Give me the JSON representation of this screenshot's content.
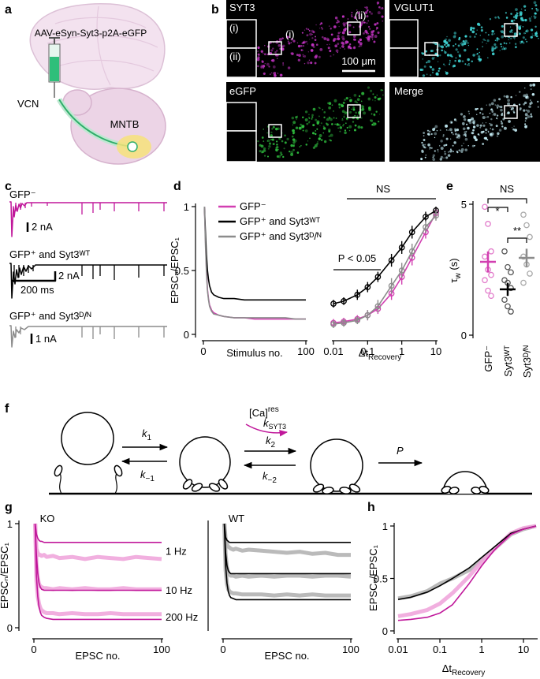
{
  "panel_labels": [
    "a",
    "b",
    "c",
    "d",
    "e",
    "f",
    "g",
    "h"
  ],
  "panel_a": {
    "construct": "AAV-eSyn-Syt3-p2A-eGFP",
    "labels": [
      "VCN",
      "MNTB"
    ]
  },
  "panel_b": {
    "channels": [
      "SYT3",
      "VGLUT1",
      "eGFP",
      "Merge"
    ],
    "insets": [
      "(i)",
      "(ii)"
    ],
    "regions": [
      "(i)",
      "(ii)"
    ],
    "scale_bar": "100 μm"
  },
  "panel_c": {
    "traces": [
      {
        "label": "GFP⁻",
        "scale": "2 nA"
      },
      {
        "label": "GFP⁺ and Syt3ᵂᵀ",
        "scale": "2 nA",
        "time_scale": "200 ms"
      },
      {
        "label": "GFP⁺ and Syt3ᴰ/ᴺ",
        "scale": "1 nA"
      }
    ]
  },
  "panel_f": {
    "rates": [
      {
        "symbol": "k",
        "sub": "1"
      },
      {
        "symbol": "k",
        "sub": "−1"
      },
      {
        "symbol": "k",
        "sub": "2"
      },
      {
        "symbol": "k",
        "sub": "−2"
      }
    ],
    "calcium": {
      "main": "[Ca]",
      "sup": "res"
    },
    "syt3_rate": {
      "symbol": "k",
      "sub": "SYT3"
    },
    "release": "P"
  },
  "chart_data": [
    {
      "type": "line",
      "xlabel": "Stimulus no.",
      "ylabel": "EPSCₙ/EPSC₁",
      "x": [
        1,
        2,
        3,
        4,
        5,
        6,
        8,
        10,
        15,
        20,
        30,
        40,
        50,
        60,
        70,
        80,
        90,
        100
      ],
      "xlim": [
        0,
        100
      ],
      "xticks": [
        0,
        100
      ],
      "ylim": [
        0,
        1
      ],
      "yticks": [
        0,
        0.5,
        1
      ],
      "legend": "upper right",
      "series": [
        {
          "name": "GFP⁻",
          "color": "#d23fb1",
          "values": [
            1,
            0.75,
            0.5,
            0.35,
            0.28,
            0.23,
            0.19,
            0.17,
            0.15,
            0.14,
            0.13,
            0.13,
            0.12,
            0.12,
            0.12,
            0.12,
            0.12,
            0.12
          ]
        },
        {
          "name": "GFP⁺ and Syt3ᵂᵀ",
          "color": "#000000",
          "values": [
            1,
            0.8,
            0.62,
            0.5,
            0.43,
            0.38,
            0.33,
            0.31,
            0.29,
            0.28,
            0.28,
            0.27,
            0.27,
            0.27,
            0.27,
            0.27,
            0.27,
            0.27
          ]
        },
        {
          "name": "GFP⁺ and Syt3ᴰ/ᴺ",
          "color": "#8c8c8c",
          "values": [
            1,
            0.7,
            0.48,
            0.34,
            0.27,
            0.22,
            0.18,
            0.16,
            0.15,
            0.14,
            0.13,
            0.13,
            0.13,
            0.13,
            0.13,
            0.13,
            0.12,
            0.12
          ]
        }
      ]
    },
    {
      "type": "line",
      "markers": true,
      "xlabel": "Δt",
      "xlabel_sub": "Recovery",
      "log_x": true,
      "x": [
        0.01,
        0.02,
        0.05,
        0.1,
        0.2,
        0.5,
        1,
        2,
        5,
        10
      ],
      "xlim": [
        0.01,
        10
      ],
      "xticks": [
        0.01,
        0.1,
        1,
        10
      ],
      "ylim": [
        0,
        1
      ],
      "annotations": [
        "NS",
        "P < 0.05"
      ],
      "series": [
        {
          "color": "#d23fb1",
          "values": [
            0.09,
            0.1,
            0.12,
            0.15,
            0.2,
            0.32,
            0.45,
            0.6,
            0.8,
            0.95
          ],
          "errors": [
            0.03,
            0.03,
            0.03,
            0.04,
            0.04,
            0.05,
            0.06,
            0.06,
            0.05,
            0.04
          ]
        },
        {
          "color": "#000000",
          "values": [
            0.24,
            0.26,
            0.31,
            0.37,
            0.45,
            0.58,
            0.68,
            0.8,
            0.92,
            0.97
          ],
          "errors": [
            0.03,
            0.03,
            0.04,
            0.04,
            0.04,
            0.05,
            0.05,
            0.05,
            0.04,
            0.03
          ]
        },
        {
          "color": "#8c8c8c",
          "values": [
            0.08,
            0.09,
            0.11,
            0.15,
            0.22,
            0.38,
            0.5,
            0.65,
            0.84,
            0.93
          ],
          "errors": [
            0.03,
            0.03,
            0.03,
            0.04,
            0.05,
            0.06,
            0.06,
            0.06,
            0.05,
            0.04
          ]
        }
      ]
    },
    {
      "type": "strip",
      "categories": [
        "GFP⁻",
        "Syt3ᵂᵀ",
        "Syt3ᴰ/ᴺ"
      ],
      "ylabel": "τ",
      "ylabel_sub": "w",
      "ylabel_unit": " (s)",
      "ylim": [
        0,
        5
      ],
      "yticks": [
        0,
        5
      ],
      "colors": [
        "#d23fb1",
        "#000000",
        "#8c8c8c"
      ],
      "point_colors": [
        "#e27ccb",
        "#555555",
        "#aaaaaa"
      ],
      "points": [
        [
          4.9,
          4.25,
          3.2,
          3.0,
          2.5,
          2.3,
          2.1,
          1.7,
          1.5
        ],
        [
          3.2,
          2.6,
          2.4,
          2.1,
          2.0,
          1.8,
          1.35,
          1.1,
          0.9
        ],
        [
          4.6,
          4.2,
          3.75,
          3.0,
          2.7,
          2.35,
          2.0
        ]
      ],
      "means": [
        2.8,
        1.75,
        2.95
      ],
      "errors": [
        0.4,
        0.25,
        0.35
      ],
      "annotations": [
        "NS",
        "*",
        "**"
      ]
    },
    {
      "type": "line",
      "title": "KO",
      "xlabel": "EPSC no.",
      "ylabel": "EPSCₙ/EPSC₁",
      "x": [
        1,
        2,
        3,
        4,
        5,
        6,
        8,
        10,
        15,
        20,
        30,
        40,
        50,
        60,
        70,
        80,
        90,
        100
      ],
      "xlim": [
        0,
        100
      ],
      "xticks": [
        0,
        100
      ],
      "ylim": [
        0,
        1
      ],
      "yticks": [
        0,
        1
      ],
      "series": [
        {
          "name": "1 Hz",
          "band": true,
          "color": "#f0a6dc",
          "values": [
            1,
            0.76,
            0.72,
            0.7,
            0.7,
            0.69,
            0.7,
            0.68,
            0.69,
            0.67,
            0.68,
            0.66,
            0.68,
            0.67,
            0.66,
            0.68,
            0.67,
            0.66
          ]
        },
        {
          "name": "10 Hz",
          "band": true,
          "color": "#f0a6dc",
          "values": [
            1,
            0.62,
            0.48,
            0.42,
            0.4,
            0.39,
            0.38,
            0.38,
            0.37,
            0.38,
            0.37,
            0.38,
            0.37,
            0.37,
            0.38,
            0.37,
            0.37,
            0.37
          ]
        },
        {
          "name": "200 Hz",
          "band": true,
          "color": "#f0a6dc",
          "values": [
            1,
            0.45,
            0.3,
            0.23,
            0.19,
            0.17,
            0.15,
            0.14,
            0.14,
            0.13,
            0.14,
            0.13,
            0.13,
            0.14,
            0.13,
            0.13,
            0.13,
            0.13
          ]
        },
        {
          "color": "#c0179a",
          "values": [
            1,
            0.9,
            0.86,
            0.84,
            0.83,
            0.83,
            0.82,
            0.82,
            0.82,
            0.82,
            0.82,
            0.82,
            0.82,
            0.82,
            0.82,
            0.82,
            0.82,
            0.82
          ]
        },
        {
          "color": "#c0179a",
          "values": [
            1,
            0.7,
            0.52,
            0.43,
            0.39,
            0.37,
            0.36,
            0.36,
            0.36,
            0.36,
            0.36,
            0.36,
            0.36,
            0.36,
            0.36,
            0.36,
            0.36,
            0.36
          ]
        },
        {
          "color": "#c0179a",
          "values": [
            1,
            0.5,
            0.3,
            0.2,
            0.15,
            0.12,
            0.1,
            0.09,
            0.08,
            0.08,
            0.08,
            0.08,
            0.08,
            0.08,
            0.08,
            0.08,
            0.08,
            0.08
          ]
        }
      ]
    },
    {
      "type": "line",
      "title": "WT",
      "xlabel": "EPSC no.",
      "x": [
        1,
        2,
        3,
        4,
        5,
        6,
        8,
        10,
        15,
        20,
        30,
        40,
        50,
        60,
        70,
        80,
        90,
        100
      ],
      "xlim": [
        0,
        100
      ],
      "xticks": [
        0,
        100
      ],
      "ylim": [
        0,
        1
      ],
      "series": [
        {
          "band": true,
          "color": "#b3b3b3",
          "values": [
            1,
            0.85,
            0.8,
            0.78,
            0.77,
            0.76,
            0.75,
            0.76,
            0.74,
            0.75,
            0.74,
            0.73,
            0.72,
            0.73,
            0.71,
            0.72,
            0.7,
            0.7
          ]
        },
        {
          "band": true,
          "color": "#b3b3b3",
          "values": [
            1,
            0.7,
            0.58,
            0.53,
            0.51,
            0.5,
            0.5,
            0.49,
            0.5,
            0.49,
            0.5,
            0.49,
            0.5,
            0.5,
            0.49,
            0.5,
            0.5,
            0.49
          ]
        },
        {
          "band": true,
          "color": "#b3b3b3",
          "values": [
            1,
            0.55,
            0.42,
            0.37,
            0.35,
            0.34,
            0.33,
            0.33,
            0.32,
            0.32,
            0.32,
            0.31,
            0.32,
            0.31,
            0.32,
            0.31,
            0.31,
            0.31
          ]
        },
        {
          "color": "#000000",
          "values": [
            1,
            0.87,
            0.84,
            0.83,
            0.82,
            0.82,
            0.82,
            0.82,
            0.82,
            0.82,
            0.82,
            0.82,
            0.82,
            0.82,
            0.82,
            0.82,
            0.82,
            0.82
          ]
        },
        {
          "color": "#000000",
          "values": [
            1,
            0.72,
            0.6,
            0.55,
            0.53,
            0.52,
            0.52,
            0.52,
            0.52,
            0.52,
            0.52,
            0.52,
            0.52,
            0.52,
            0.52,
            0.52,
            0.52,
            0.52
          ]
        },
        {
          "color": "#000000",
          "values": [
            1,
            0.6,
            0.43,
            0.35,
            0.31,
            0.29,
            0.28,
            0.27,
            0.27,
            0.27,
            0.27,
            0.27,
            0.27,
            0.27,
            0.27,
            0.27,
            0.27,
            0.27
          ]
        }
      ]
    },
    {
      "type": "line",
      "xlabel": "Δt",
      "xlabel_sub": "Recovery",
      "ylabel": "EPSCₙ/EPSC₁",
      "log_x": true,
      "x": [
        0.01,
        0.02,
        0.05,
        0.1,
        0.2,
        0.5,
        1,
        2,
        5,
        10,
        20
      ],
      "xlim": [
        0.01,
        20
      ],
      "xticks": [
        0.01,
        0.1,
        1,
        10
      ],
      "ylim": [
        0,
        1
      ],
      "yticks": [
        0,
        0.5,
        1
      ],
      "series": [
        {
          "band": true,
          "color": "#b3b3b3",
          "values": [
            0.31,
            0.33,
            0.38,
            0.45,
            0.5,
            0.58,
            0.68,
            0.78,
            0.92,
            0.97,
            1
          ]
        },
        {
          "band": true,
          "color": "#f0a6dc",
          "values": [
            0.14,
            0.16,
            0.2,
            0.26,
            0.36,
            0.52,
            0.66,
            0.78,
            0.93,
            0.98,
            1
          ]
        },
        {
          "color": "#000000",
          "values": [
            0.3,
            0.32,
            0.37,
            0.43,
            0.5,
            0.6,
            0.7,
            0.8,
            0.93,
            0.97,
            1
          ]
        },
        {
          "color": "#c0179a",
          "values": [
            0.1,
            0.11,
            0.13,
            0.17,
            0.25,
            0.45,
            0.62,
            0.77,
            0.92,
            0.97,
            1
          ]
        }
      ]
    }
  ]
}
